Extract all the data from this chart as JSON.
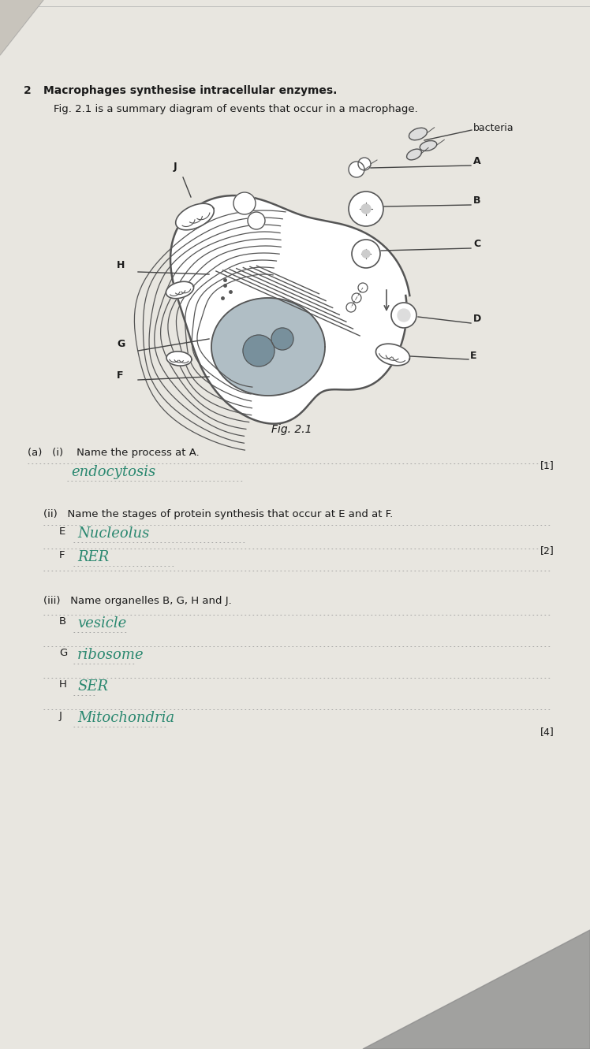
{
  "paper_color": "#e8e6e0",
  "question_number": "2",
  "title_line1": "Macrophages synthesise intracellular enzymes.",
  "title_line2": "Fig. 2.1 is a summary diagram of events that occur in a macrophage.",
  "fig_caption": "Fig. 2.1",
  "question_a_i": "(a)   (i)    Name the process at A.",
  "answer_a_i": "endocytosis",
  "question_a_ii": "(ii)   Name the stages of protein synthesis that occur at E and at F.",
  "answer_E_label": "E",
  "answer_E": "Nucleolus",
  "answer_F_label": "F",
  "answer_F": "RER",
  "question_a_iii": "(iii)   Name organelles B, G, H and J.",
  "answer_B_label": "B",
  "answer_B": "vesicle",
  "answer_G_label": "G",
  "answer_G": "ribosome",
  "answer_H_label": "H",
  "answer_H": "SER",
  "answer_J_label": "J",
  "answer_J": "Mitochondria",
  "mark_1": "[1]",
  "mark_2": "[2]",
  "mark_4": "[4]",
  "handwriting_color": "#2a8870",
  "print_color": "#1a1a1a",
  "line_color": "#999999",
  "cell_line_color": "#555555",
  "cell_fill": "#ffffff",
  "nucleus_fill": "#b0bec5",
  "nucleolus_fill": "#78909c"
}
